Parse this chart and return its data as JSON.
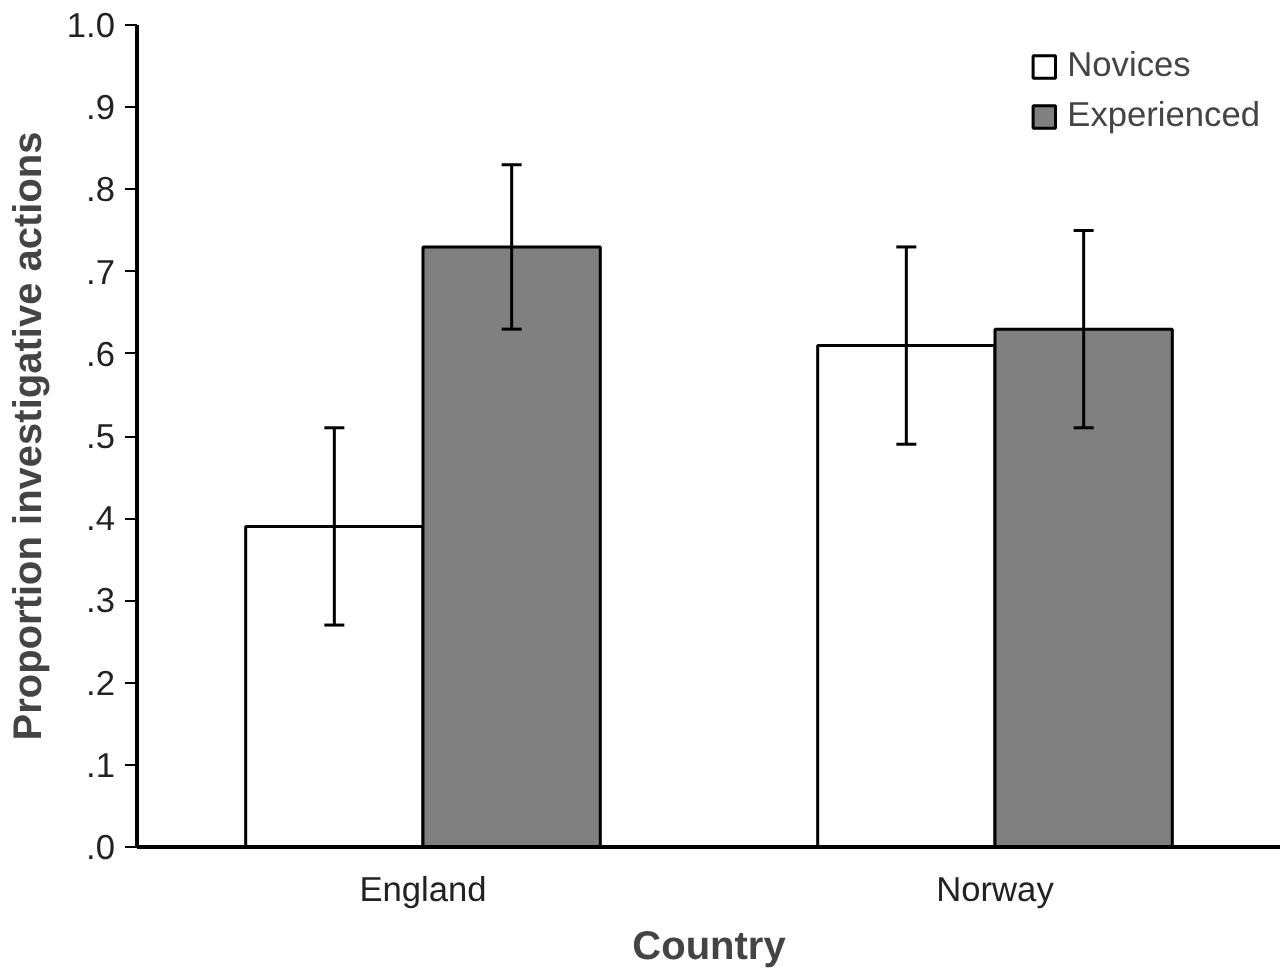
{
  "chart_data": {
    "type": "bar",
    "xlabel": "Country",
    "ylabel": "Proportion investigative actions",
    "categories": [
      "England",
      "Norway"
    ],
    "series": [
      {
        "name": "Novices",
        "color": "#ffffff",
        "values": [
          0.39,
          0.61
        ],
        "errors": [
          0.12,
          0.12
        ]
      },
      {
        "name": "Experienced",
        "color": "#808080",
        "values": [
          0.73,
          0.63
        ],
        "errors": [
          0.1,
          0.12
        ]
      }
    ],
    "ylim": [
      0,
      1.0
    ],
    "yticks": [
      {
        "value": 0,
        "label": ".0"
      },
      {
        "value": 0.1,
        "label": ".1"
      },
      {
        "value": 0.2,
        "label": ".2"
      },
      {
        "value": 0.3,
        "label": ".3"
      },
      {
        "value": 0.4,
        "label": ".4"
      },
      {
        "value": 0.5,
        "label": ".5"
      },
      {
        "value": 0.6,
        "label": ".6"
      },
      {
        "value": 0.7,
        "label": ".7"
      },
      {
        "value": 0.8,
        "label": ".8"
      },
      {
        "value": 0.9,
        "label": ".9"
      },
      {
        "value": 1.0,
        "label": "1.0"
      }
    ],
    "grid": false,
    "legend": "top right"
  }
}
